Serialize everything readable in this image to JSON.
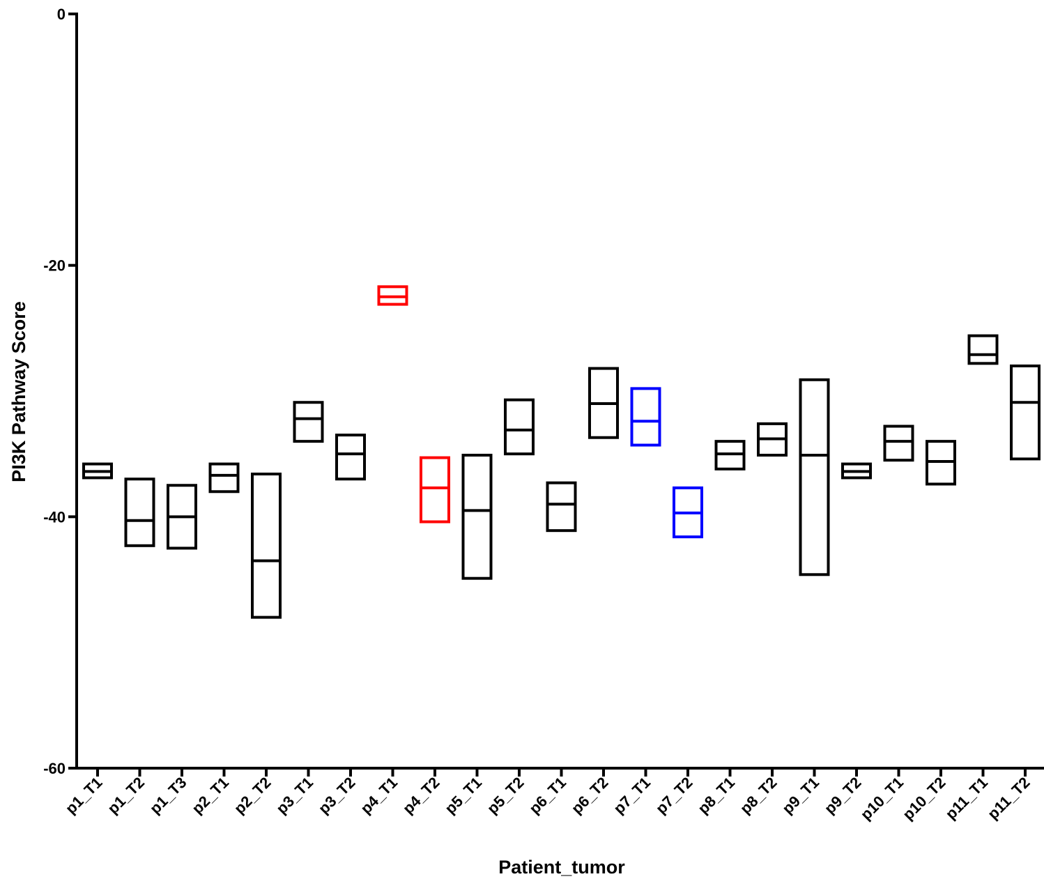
{
  "chart_data": {
    "type": "floating-bar",
    "xlabel": "Patient_tumor",
    "ylabel": "PI3K Pathway Score",
    "ylim": [
      -60,
      0
    ],
    "yticks": [
      0,
      -20,
      -40,
      -60
    ],
    "grid": false,
    "categories": [
      "p1_T1",
      "p1_T2",
      "p1_T3",
      "p2_T1",
      "p2_T2",
      "p3_T1",
      "p3_T2",
      "p4_T1",
      "p4_T2",
      "p5_T1",
      "p5_T2",
      "p6_T1",
      "p6_T2",
      "p7_T1",
      "p7_T2",
      "p8_T1",
      "p8_T2",
      "p9_T1",
      "p9_T2",
      "p10_T1",
      "p10_T2",
      "p11_T1",
      "p11_T2"
    ],
    "boxes": [
      {
        "min": -36.9,
        "mean": -36.4,
        "max": -35.8,
        "color": "#000000"
      },
      {
        "min": -42.3,
        "mean": -40.3,
        "max": -37.0,
        "color": "#000000"
      },
      {
        "min": -42.5,
        "mean": -40.0,
        "max": -37.5,
        "color": "#000000"
      },
      {
        "min": -38.0,
        "mean": -36.7,
        "max": -35.8,
        "color": "#000000"
      },
      {
        "min": -48.0,
        "mean": -43.5,
        "max": -36.6,
        "color": "#000000"
      },
      {
        "min": -34.0,
        "mean": -32.2,
        "max": -30.9,
        "color": "#000000"
      },
      {
        "min": -37.0,
        "mean": -35.0,
        "max": -33.5,
        "color": "#000000"
      },
      {
        "min": -23.1,
        "mean": -22.5,
        "max": -21.7,
        "color": "#ff0000"
      },
      {
        "min": -40.4,
        "mean": -37.7,
        "max": -35.3,
        "color": "#ff0000"
      },
      {
        "min": -44.9,
        "mean": -39.5,
        "max": -35.1,
        "color": "#000000"
      },
      {
        "min": -35.0,
        "mean": -33.1,
        "max": -30.7,
        "color": "#000000"
      },
      {
        "min": -41.1,
        "mean": -39.0,
        "max": -37.3,
        "color": "#000000"
      },
      {
        "min": -33.7,
        "mean": -31.0,
        "max": -28.2,
        "color": "#000000"
      },
      {
        "min": -34.3,
        "mean": -32.4,
        "max": -29.8,
        "color": "#0000ff"
      },
      {
        "min": -41.6,
        "mean": -39.7,
        "max": -37.7,
        "color": "#0000ff"
      },
      {
        "min": -36.2,
        "mean": -35.0,
        "max": -34.0,
        "color": "#000000"
      },
      {
        "min": -35.1,
        "mean": -33.8,
        "max": -32.6,
        "color": "#000000"
      },
      {
        "min": -44.6,
        "mean": -35.1,
        "max": -29.1,
        "color": "#000000"
      },
      {
        "min": -36.9,
        "mean": -36.4,
        "max": -35.8,
        "color": "#000000"
      },
      {
        "min": -35.5,
        "mean": -34.0,
        "max": -32.8,
        "color": "#000000"
      },
      {
        "min": -37.4,
        "mean": -35.6,
        "max": -34.0,
        "color": "#000000"
      },
      {
        "min": -27.8,
        "mean": -27.1,
        "max": -25.6,
        "color": "#000000"
      },
      {
        "min": -35.4,
        "mean": -30.9,
        "max": -28.0,
        "color": "#000000"
      }
    ]
  }
}
